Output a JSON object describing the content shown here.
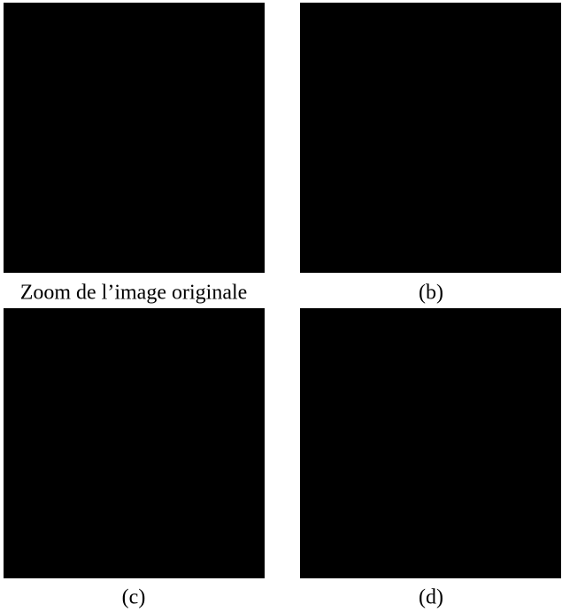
{
  "panels": [
    {
      "caption": "Zoom de l’image originale"
    },
    {
      "caption": "(b)"
    },
    {
      "caption": "(c)"
    },
    {
      "caption": "(d)"
    }
  ]
}
